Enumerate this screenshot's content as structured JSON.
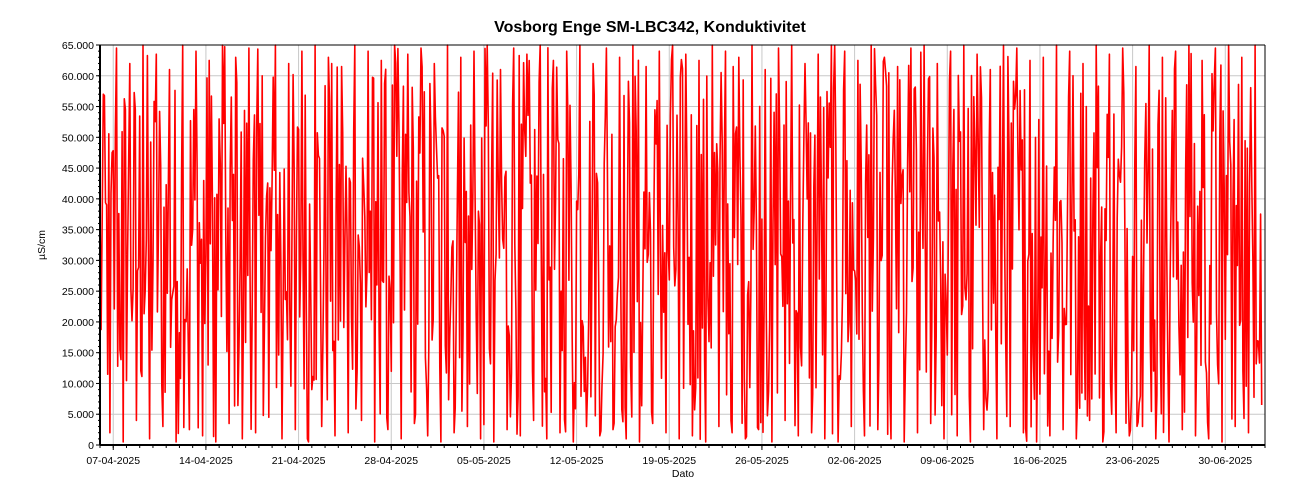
{
  "chart_data": {
    "type": "line",
    "title": "Vosborg Enge SM-LBC342, Konduktivitet",
    "xlabel": "Dato",
    "ylabel": "µS/cm",
    "ylim": [
      0,
      65000
    ],
    "y_ticks": [
      0,
      5000,
      10000,
      15000,
      20000,
      25000,
      30000,
      35000,
      40000,
      45000,
      50000,
      55000,
      60000,
      65000
    ],
    "y_tick_labels": [
      "0",
      "5.000",
      "10.000",
      "15.000",
      "20.000",
      "25.000",
      "30.000",
      "35.000",
      "40.000",
      "45.000",
      "50.000",
      "55.000",
      "60.000",
      "65.000"
    ],
    "x_tick_labels": [
      "07-04-2025",
      "14-04-2025",
      "21-04-2025",
      "28-04-2025",
      "05-05-2025",
      "12-05-2025",
      "19-05-2025",
      "26-05-2025",
      "02-06-2025",
      "09-06-2025",
      "16-06-2025",
      "23-06-2025",
      "30-06-2025"
    ],
    "xlim": [
      "2025-04-06",
      "2025-07-03"
    ],
    "grid": true,
    "legend": "none",
    "series": [
      {
        "color": "#ff0000",
        "x": [
          "2025-04-06",
          "2025-04-07",
          "2025-04-08",
          "2025-04-09",
          "2025-04-10",
          "2025-04-11",
          "2025-04-12",
          "2025-04-13",
          "2025-04-14",
          "2025-04-15",
          "2025-04-16",
          "2025-04-17",
          "2025-04-18",
          "2025-04-19",
          "2025-04-20",
          "2025-04-21",
          "2025-04-22",
          "2025-04-23",
          "2025-04-24",
          "2025-04-25",
          "2025-04-26",
          "2025-04-27",
          "2025-04-28",
          "2025-04-29",
          "2025-04-30",
          "2025-05-01",
          "2025-05-02",
          "2025-05-03",
          "2025-05-04",
          "2025-05-05",
          "2025-05-06",
          "2025-05-07",
          "2025-05-08",
          "2025-05-09",
          "2025-05-10",
          "2025-05-11",
          "2025-05-12",
          "2025-05-13",
          "2025-05-14",
          "2025-05-15",
          "2025-05-16",
          "2025-05-17",
          "2025-05-18",
          "2025-05-19",
          "2025-05-20",
          "2025-05-21",
          "2025-05-22",
          "2025-05-23",
          "2025-05-24",
          "2025-05-25",
          "2025-05-26",
          "2025-05-27",
          "2025-05-28",
          "2025-05-29",
          "2025-05-30",
          "2025-05-31",
          "2025-06-01",
          "2025-06-02",
          "2025-06-03",
          "2025-06-04",
          "2025-06-05",
          "2025-06-06",
          "2025-06-07",
          "2025-06-08",
          "2025-06-09",
          "2025-06-10",
          "2025-06-11",
          "2025-06-12",
          "2025-06-13",
          "2025-06-14",
          "2025-06-15",
          "2025-06-16",
          "2025-06-17",
          "2025-06-18",
          "2025-06-19",
          "2025-06-20",
          "2025-06-21",
          "2025-06-22",
          "2025-06-23",
          "2025-06-24",
          "2025-06-25",
          "2025-06-26",
          "2025-06-27",
          "2025-06-28",
          "2025-06-29",
          "2025-06-30",
          "2025-07-01",
          "2025-07-02"
        ],
        "min": [
          2000,
          500,
          4000,
          1000,
          3000,
          500,
          2500,
          1500,
          500,
          3500,
          1000,
          2000,
          4500,
          1000,
          2500,
          500,
          3000,
          1500,
          2000,
          4000,
          500,
          2500,
          1000,
          3500,
          1500,
          500,
          2000,
          3000,
          1000,
          500,
          2500,
          1500,
          4000,
          1000,
          2000,
          500,
          3000,
          1500,
          2500,
          1000,
          500,
          3500,
          2000,
          1000,
          1500,
          500,
          3000,
          2000,
          1000,
          2500,
          500,
          4000,
          1500,
          2000,
          1000,
          500,
          3000,
          1500,
          2500,
          1000,
          500,
          2000,
          3500,
          1000,
          1500,
          500,
          2500,
          1000,
          3000,
          2000,
          500,
          1500,
          2500,
          1000,
          4000,
          500,
          2000,
          1500,
          3000,
          1000,
          500,
          2500,
          1500,
          1000,
          500,
          3000,
          2000,
          6500
        ],
        "max": [
          57000,
          64500,
          62000,
          65000,
          63500,
          61000,
          65000,
          64000,
          62500,
          65000,
          63000,
          64500,
          60000,
          65000,
          62000,
          64000,
          65000,
          63000,
          61500,
          65000,
          64000,
          62500,
          65000,
          63500,
          64500,
          62000,
          65000,
          63000,
          64000,
          65000,
          61000,
          64500,
          63500,
          65000,
          62500,
          64000,
          65000,
          62000,
          64500,
          63000,
          65000,
          61500,
          64000,
          65000,
          63500,
          62500,
          65000,
          64000,
          63000,
          65000,
          61000,
          64500,
          65000,
          62000,
          63500,
          65000,
          64000,
          62500,
          65000,
          63000,
          61500,
          64500,
          65000,
          62000,
          64000,
          65000,
          63500,
          61000,
          65000,
          64500,
          62500,
          63000,
          65000,
          64000,
          62000,
          65000,
          63500,
          64500,
          61500,
          65000,
          63000,
          64000,
          65000,
          62500,
          64500,
          65000,
          63000,
          65000
        ]
      }
    ]
  }
}
